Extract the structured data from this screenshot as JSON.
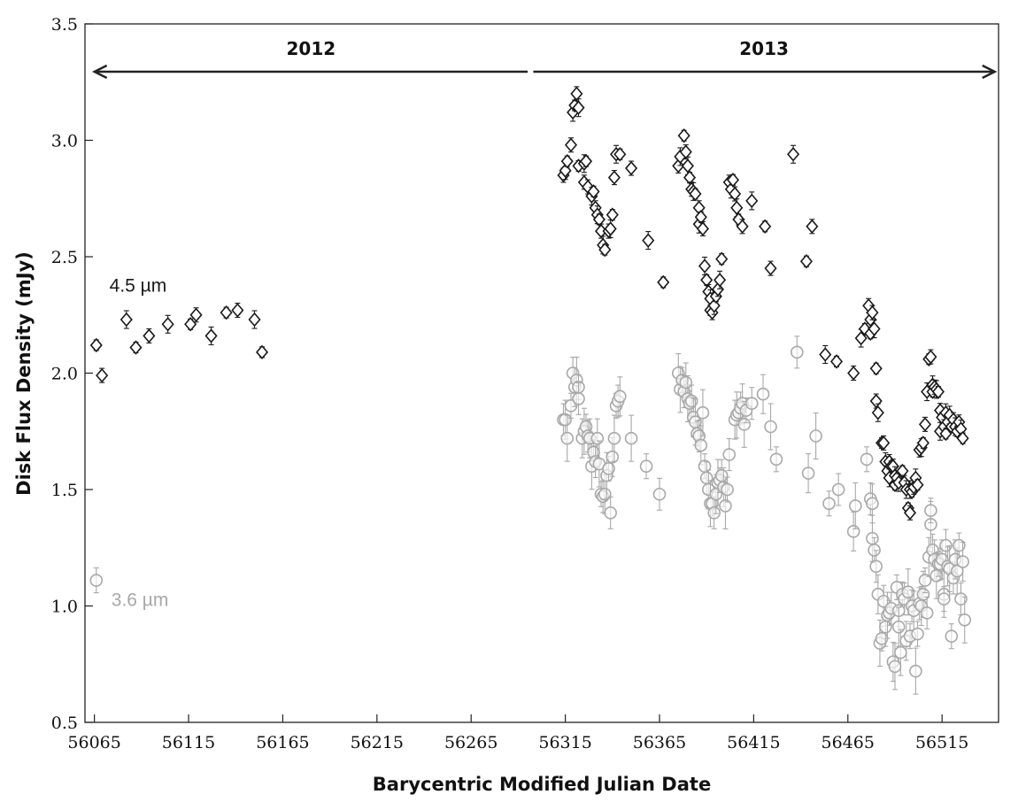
{
  "chart_data": {
    "type": "scatter",
    "xlabel": "Barycentric Modified Julian Date",
    "ylabel": "Disk Flux Density (mJy)",
    "xlim": [
      56060,
      56545
    ],
    "ylim": [
      0.5,
      3.5
    ],
    "xticks": [
      56065,
      56115,
      56165,
      56215,
      56265,
      56315,
      56365,
      56415,
      56465,
      56515
    ],
    "yticks": [
      0.5,
      1.0,
      1.5,
      2.0,
      2.5,
      3.0,
      3.5
    ],
    "grid": false,
    "year_ranges": [
      {
        "label": "2012",
        "from": 56065,
        "to": 56295
      },
      {
        "label": "2013",
        "from": 56298,
        "to": 56543
      }
    ],
    "series": [
      {
        "name": "4.5 µm",
        "marker": "diamond",
        "color": "#1a1a1a",
        "label_at": [
          56073,
          2.35
        ],
        "points": [
          [
            56066,
            2.12
          ],
          [
            56069,
            1.99
          ],
          [
            56082,
            2.23
          ],
          [
            56087,
            2.11
          ],
          [
            56094,
            2.16
          ],
          [
            56104,
            2.21
          ],
          [
            56116,
            2.21
          ],
          [
            56119,
            2.25
          ],
          [
            56127,
            2.16
          ],
          [
            56135,
            2.26
          ],
          [
            56141,
            2.27
          ],
          [
            56150,
            2.23
          ],
          [
            56154,
            2.09
          ],
          [
            56314,
            2.85
          ],
          [
            56315,
            2.87
          ],
          [
            56316,
            2.91
          ],
          [
            56318,
            2.98
          ],
          [
            56319,
            3.12
          ],
          [
            56320,
            3.15
          ],
          [
            56321,
            3.2
          ],
          [
            56322,
            3.14
          ],
          [
            56322,
            2.89
          ],
          [
            56325,
            2.82
          ],
          [
            56325,
            2.9
          ],
          [
            56326,
            2.91
          ],
          [
            56327,
            2.8
          ],
          [
            56329,
            2.76
          ],
          [
            56330,
            2.78
          ],
          [
            56331,
            2.71
          ],
          [
            56332,
            2.68
          ],
          [
            56333,
            2.66
          ],
          [
            56334,
            2.61
          ],
          [
            56335,
            2.55
          ],
          [
            56336,
            2.53
          ],
          [
            56338,
            2.61
          ],
          [
            56339,
            2.62
          ],
          [
            56340,
            2.68
          ],
          [
            56341,
            2.84
          ],
          [
            56342,
            2.94
          ],
          [
            56344,
            2.94
          ],
          [
            56350,
            2.88
          ],
          [
            56359,
            2.57
          ],
          [
            56367,
            2.39
          ],
          [
            56375,
            2.89
          ],
          [
            56376,
            2.93
          ],
          [
            56378,
            3.02
          ],
          [
            56379,
            2.95
          ],
          [
            56380,
            2.89
          ],
          [
            56381,
            2.84
          ],
          [
            56382,
            2.79
          ],
          [
            56383,
            2.78
          ],
          [
            56384,
            2.77
          ],
          [
            56386,
            2.71
          ],
          [
            56386,
            2.64
          ],
          [
            56387,
            2.67
          ],
          [
            56388,
            2.62
          ],
          [
            56389,
            2.46
          ],
          [
            56390,
            2.4
          ],
          [
            56391,
            2.35
          ],
          [
            56392,
            2.32
          ],
          [
            56392,
            2.27
          ],
          [
            56393,
            2.26
          ],
          [
            56394,
            2.29
          ],
          [
            56395,
            2.33
          ],
          [
            56396,
            2.36
          ],
          [
            56397,
            2.4
          ],
          [
            56398,
            2.49
          ],
          [
            56402,
            2.82
          ],
          [
            56403,
            2.79
          ],
          [
            56404,
            2.83
          ],
          [
            56405,
            2.77
          ],
          [
            56406,
            2.71
          ],
          [
            56407,
            2.66
          ],
          [
            56409,
            2.63
          ],
          [
            56414,
            2.74
          ],
          [
            56421,
            2.63
          ],
          [
            56424,
            2.45
          ],
          [
            56436,
            2.94
          ],
          [
            56443,
            2.48
          ],
          [
            56446,
            2.63
          ],
          [
            56453,
            2.08
          ],
          [
            56459,
            2.05
          ],
          [
            56468,
            2.0
          ],
          [
            56472,
            2.15
          ],
          [
            56474,
            2.19
          ],
          [
            56476,
            2.29
          ],
          [
            56477,
            2.23
          ],
          [
            56477,
            2.17
          ],
          [
            56478,
            2.26
          ],
          [
            56479,
            2.19
          ],
          [
            56480,
            2.02
          ],
          [
            56480,
            1.88
          ],
          [
            56481,
            1.83
          ],
          [
            56483,
            1.7
          ],
          [
            56484,
            1.7
          ],
          [
            56485,
            1.62
          ],
          [
            56486,
            1.58
          ],
          [
            56487,
            1.62
          ],
          [
            56487,
            1.55
          ],
          [
            56488,
            1.6
          ],
          [
            56489,
            1.6
          ],
          [
            56490,
            1.56
          ],
          [
            56490,
            1.52
          ],
          [
            56491,
            1.55
          ],
          [
            56492,
            1.53
          ],
          [
            56494,
            1.58
          ],
          [
            56495,
            1.53
          ],
          [
            56496,
            1.5
          ],
          [
            56497,
            1.42
          ],
          [
            56498,
            1.4
          ],
          [
            56498,
            1.5
          ],
          [
            56499,
            1.49
          ],
          [
            56500,
            1.51
          ],
          [
            56501,
            1.55
          ],
          [
            56502,
            1.52
          ],
          [
            56503,
            1.67
          ],
          [
            56504,
            1.68
          ],
          [
            56505,
            1.7
          ],
          [
            56506,
            1.78
          ],
          [
            56507,
            1.92
          ],
          [
            56508,
            2.06
          ],
          [
            56509,
            2.07
          ],
          [
            56510,
            1.95
          ],
          [
            56510,
            1.92
          ],
          [
            56511,
            1.94
          ],
          [
            56512,
            1.93
          ],
          [
            56513,
            1.92
          ],
          [
            56514,
            1.84
          ],
          [
            56514,
            1.75
          ],
          [
            56515,
            1.81
          ],
          [
            56516,
            1.77
          ],
          [
            56517,
            1.83
          ],
          [
            56517,
            1.74
          ],
          [
            56518,
            1.79
          ],
          [
            56519,
            1.82
          ],
          [
            56520,
            1.77
          ],
          [
            56521,
            1.8
          ],
          [
            56522,
            1.77
          ],
          [
            56523,
            1.75
          ],
          [
            56524,
            1.79
          ],
          [
            56525,
            1.76
          ],
          [
            56526,
            1.72
          ]
        ]
      },
      {
        "name": "3.6 µm",
        "marker": "circle",
        "color": "#a8a8a8",
        "label_at": [
          56074,
          1.0
        ],
        "points": [
          [
            56066,
            1.11
          ],
          [
            56314,
            1.8
          ],
          [
            56315,
            1.8
          ],
          [
            56316,
            1.72
          ],
          [
            56318,
            1.86
          ],
          [
            56319,
            2.0
          ],
          [
            56320,
            1.94
          ],
          [
            56321,
            1.97
          ],
          [
            56322,
            1.94
          ],
          [
            56322,
            1.89
          ],
          [
            56324,
            1.72
          ],
          [
            56325,
            1.75
          ],
          [
            56326,
            1.77
          ],
          [
            56327,
            1.73
          ],
          [
            56328,
            1.72
          ],
          [
            56329,
            1.6
          ],
          [
            56330,
            1.66
          ],
          [
            56331,
            1.62
          ],
          [
            56332,
            1.72
          ],
          [
            56333,
            1.61
          ],
          [
            56334,
            1.48
          ],
          [
            56335,
            1.47
          ],
          [
            56336,
            1.48
          ],
          [
            56337,
            1.56
          ],
          [
            56338,
            1.59
          ],
          [
            56339,
            1.4
          ],
          [
            56340,
            1.64
          ],
          [
            56341,
            1.72
          ],
          [
            56342,
            1.86
          ],
          [
            56343,
            1.88
          ],
          [
            56344,
            1.9
          ],
          [
            56350,
            1.72
          ],
          [
            56358,
            1.6
          ],
          [
            56365,
            1.48
          ],
          [
            56375,
            2.0
          ],
          [
            56376,
            1.93
          ],
          [
            56377,
            1.97
          ],
          [
            56378,
            1.92
          ],
          [
            56379,
            1.96
          ],
          [
            56380,
            1.89
          ],
          [
            56381,
            1.87
          ],
          [
            56382,
            1.88
          ],
          [
            56383,
            1.81
          ],
          [
            56384,
            1.79
          ],
          [
            56385,
            1.74
          ],
          [
            56386,
            1.73
          ],
          [
            56387,
            1.69
          ],
          [
            56388,
            1.83
          ],
          [
            56389,
            1.6
          ],
          [
            56390,
            1.55
          ],
          [
            56391,
            1.5
          ],
          [
            56392,
            1.44
          ],
          [
            56393,
            1.44
          ],
          [
            56394,
            1.4
          ],
          [
            56395,
            1.48
          ],
          [
            56396,
            1.53
          ],
          [
            56397,
            1.54
          ],
          [
            56398,
            1.56
          ],
          [
            56399,
            1.51
          ],
          [
            56400,
            1.43
          ],
          [
            56401,
            1.5
          ],
          [
            56402,
            1.65
          ],
          [
            56405,
            1.8
          ],
          [
            56406,
            1.82
          ],
          [
            56407,
            1.83
          ],
          [
            56408,
            1.85
          ],
          [
            56409,
            1.87
          ],
          [
            56410,
            1.78
          ],
          [
            56411,
            1.84
          ],
          [
            56414,
            1.87
          ],
          [
            56420,
            1.91
          ],
          [
            56424,
            1.77
          ],
          [
            56427,
            1.63
          ],
          [
            56438,
            2.09
          ],
          [
            56444,
            1.57
          ],
          [
            56448,
            1.73
          ],
          [
            56455,
            1.44
          ],
          [
            56460,
            1.5
          ],
          [
            56468,
            1.32
          ],
          [
            56469,
            1.43
          ],
          [
            56475,
            1.63
          ],
          [
            56477,
            1.46
          ],
          [
            56478,
            1.44
          ],
          [
            56478,
            1.29
          ],
          [
            56479,
            1.24
          ],
          [
            56480,
            1.17
          ],
          [
            56481,
            1.05
          ],
          [
            56482,
            0.84
          ],
          [
            56483,
            0.86
          ],
          [
            56484,
            1.02
          ],
          [
            56485,
            0.91
          ],
          [
            56486,
            0.96
          ],
          [
            56487,
            0.97
          ],
          [
            56488,
            0.99
          ],
          [
            56489,
            0.76
          ],
          [
            56490,
            0.74
          ],
          [
            56491,
            1.08
          ],
          [
            56492,
            0.98
          ],
          [
            56492,
            0.91
          ],
          [
            56493,
            0.8
          ],
          [
            56494,
            1.05
          ],
          [
            56495,
            1.03
          ],
          [
            56496,
            0.85
          ],
          [
            56497,
            1.06
          ],
          [
            56498,
            0.87
          ],
          [
            56499,
            1.0
          ],
          [
            56500,
            0.98
          ],
          [
            56501,
            0.72
          ],
          [
            56502,
            0.88
          ],
          [
            56503,
            1.01
          ],
          [
            56504,
            1.0
          ],
          [
            56505,
            1.05
          ],
          [
            56506,
            1.11
          ],
          [
            56507,
            0.97
          ],
          [
            56508,
            1.21
          ],
          [
            56509,
            1.35
          ],
          [
            56509,
            1.41
          ],
          [
            56510,
            1.24
          ],
          [
            56511,
            1.2
          ],
          [
            56512,
            1.13
          ],
          [
            56513,
            1.18
          ],
          [
            56514,
            1.18
          ],
          [
            56515,
            1.2
          ],
          [
            56516,
            1.05
          ],
          [
            56516,
            1.03
          ],
          [
            56517,
            1.26
          ],
          [
            56518,
            1.17
          ],
          [
            56519,
            1.16
          ],
          [
            56520,
            0.87
          ],
          [
            56521,
            1.12
          ],
          [
            56522,
            1.2
          ],
          [
            56523,
            1.15
          ],
          [
            56524,
            1.26
          ],
          [
            56525,
            1.03
          ],
          [
            56526,
            1.19
          ],
          [
            56527,
            0.94
          ]
        ]
      }
    ]
  }
}
